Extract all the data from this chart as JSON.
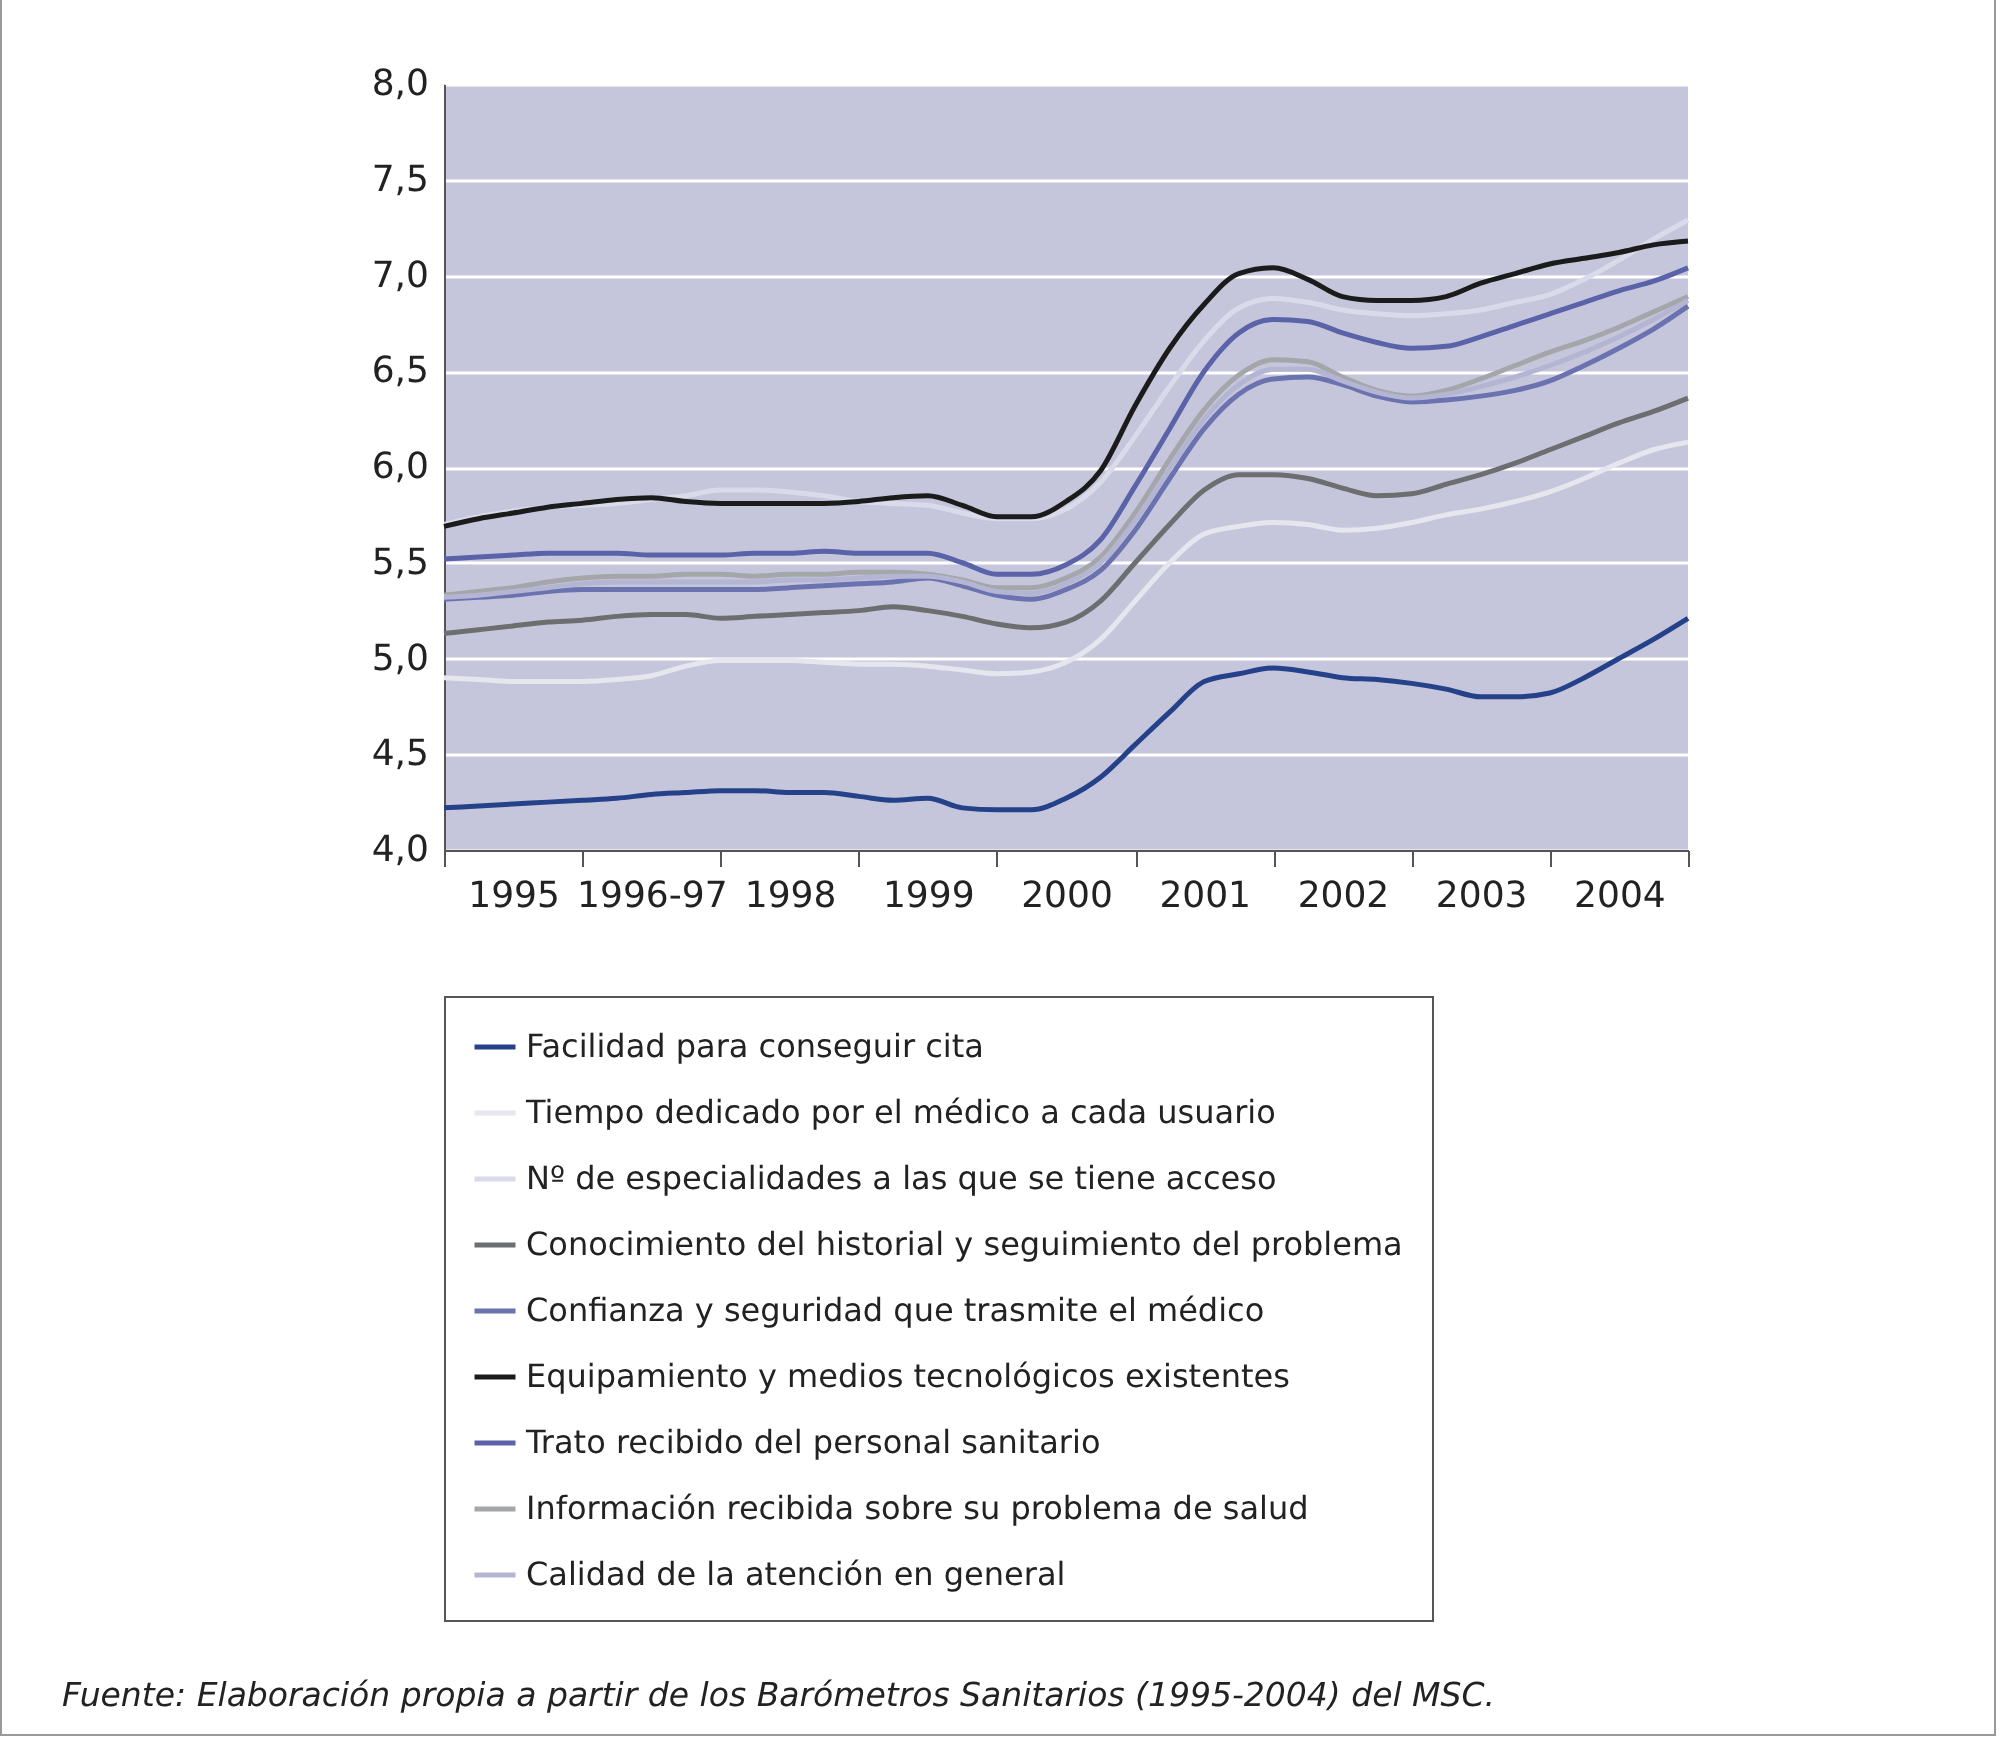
{
  "chart_data": {
    "type": "line",
    "categories": [
      null,
      null,
      "1995",
      null,
      null,
      null,
      "1996-97",
      null,
      null,
      null,
      "1998",
      null,
      null,
      null,
      "1999",
      null,
      null,
      null,
      "2000",
      null,
      null,
      null,
      "2001",
      null,
      null,
      null,
      "2002",
      null,
      null,
      null,
      "2003",
      null,
      null,
      null,
      "2004",
      null,
      null
    ],
    "series": [
      {
        "name": "Facilidad para conseguir cita",
        "color": "#24418a",
        "values": [
          4.22,
          4.23,
          4.24,
          4.25,
          4.26,
          4.27,
          4.29,
          4.3,
          4.31,
          4.31,
          4.3,
          4.3,
          4.28,
          4.26,
          4.27,
          4.22,
          4.21,
          4.21,
          4.27,
          4.38,
          4.55,
          4.72,
          4.88,
          4.92,
          4.95,
          4.93,
          4.9,
          4.89,
          4.87,
          4.84,
          4.8,
          4.8,
          4.82,
          4.9,
          5.0,
          5.1,
          5.21
        ]
      },
      {
        "name": "Tiempo dedicado por el médico a cada usuario",
        "color": "#e6e6ee",
        "values": [
          4.9,
          4.89,
          4.88,
          4.88,
          4.88,
          4.89,
          4.91,
          4.96,
          4.99,
          4.99,
          4.99,
          4.98,
          4.97,
          4.97,
          4.96,
          4.94,
          4.92,
          4.93,
          4.98,
          5.1,
          5.3,
          5.5,
          5.65,
          5.69,
          5.71,
          5.7,
          5.67,
          5.68,
          5.71,
          5.75,
          5.78,
          5.82,
          5.87,
          5.94,
          6.02,
          6.09,
          6.13
        ]
      },
      {
        "name": "Nº de especialidades a las que se tiene acceso",
        "color": "#dadbea",
        "values": [
          5.7,
          5.74,
          5.77,
          5.79,
          5.8,
          5.81,
          5.83,
          5.85,
          5.88,
          5.88,
          5.87,
          5.85,
          5.82,
          5.81,
          5.8,
          5.76,
          5.73,
          5.73,
          5.78,
          5.92,
          6.16,
          6.42,
          6.66,
          6.83,
          6.88,
          6.86,
          6.82,
          6.8,
          6.79,
          6.8,
          6.82,
          6.86,
          6.9,
          6.98,
          7.08,
          7.19,
          7.29
        ]
      },
      {
        "name": "Conocimiento del historial y seguimiento del problema",
        "color": "#6d6e70",
        "values": [
          5.13,
          5.15,
          5.17,
          5.19,
          5.2,
          5.22,
          5.23,
          5.23,
          5.21,
          5.22,
          5.23,
          5.24,
          5.25,
          5.27,
          5.25,
          5.22,
          5.18,
          5.16,
          5.19,
          5.3,
          5.5,
          5.7,
          5.88,
          5.96,
          5.96,
          5.94,
          5.89,
          5.85,
          5.86,
          5.91,
          5.96,
          6.02,
          6.09,
          6.16,
          6.23,
          6.29,
          6.36
        ]
      },
      {
        "name": "Confianza y seguridad que trasmite el médico",
        "color": "#6b72b0",
        "values": [
          5.31,
          5.32,
          5.33,
          5.35,
          5.36,
          5.36,
          5.36,
          5.36,
          5.36,
          5.36,
          5.37,
          5.38,
          5.39,
          5.4,
          5.42,
          5.38,
          5.33,
          5.31,
          5.36,
          5.46,
          5.67,
          5.94,
          6.2,
          6.38,
          6.46,
          6.47,
          6.43,
          6.37,
          6.34,
          6.35,
          6.37,
          6.4,
          6.45,
          6.53,
          6.62,
          6.72,
          6.84
        ]
      },
      {
        "name": "Equipamiento y medios tecnológicos existentes",
        "color": "#1b1b1b",
        "values": [
          5.69,
          5.73,
          5.76,
          5.79,
          5.81,
          5.83,
          5.84,
          5.82,
          5.81,
          5.81,
          5.81,
          5.81,
          5.82,
          5.84,
          5.85,
          5.8,
          5.74,
          5.74,
          5.82,
          5.98,
          6.32,
          6.62,
          6.85,
          7.01,
          7.04,
          6.98,
          6.89,
          6.87,
          6.87,
          6.89,
          6.96,
          7.01,
          7.06,
          7.09,
          7.12,
          7.16,
          7.18
        ]
      },
      {
        "name": "Trato recibido del personal sanitario",
        "color": "#5a62a8",
        "values": [
          5.52,
          5.53,
          5.54,
          5.55,
          5.55,
          5.55,
          5.54,
          5.54,
          5.54,
          5.55,
          5.55,
          5.56,
          5.55,
          5.55,
          5.55,
          5.5,
          5.44,
          5.44,
          5.49,
          5.62,
          5.9,
          6.2,
          6.5,
          6.7,
          6.77,
          6.76,
          6.7,
          6.65,
          6.62,
          6.63,
          6.68,
          6.74,
          6.8,
          6.86,
          6.92,
          6.97,
          7.04
        ]
      },
      {
        "name": "Información recibida sobre su problema de salud",
        "color": "#a5a6a9",
        "values": [
          5.33,
          5.35,
          5.37,
          5.4,
          5.42,
          5.43,
          5.43,
          5.44,
          5.44,
          5.43,
          5.44,
          5.44,
          5.45,
          5.45,
          5.44,
          5.41,
          5.37,
          5.37,
          5.42,
          5.53,
          5.76,
          6.04,
          6.3,
          6.48,
          6.56,
          6.55,
          6.47,
          6.4,
          6.37,
          6.4,
          6.46,
          6.53,
          6.6,
          6.66,
          6.73,
          6.81,
          6.89
        ]
      },
      {
        "name": "Calidad de la atención en general",
        "color": "#b3b5d2",
        "values": [
          5.32,
          5.33,
          5.35,
          5.37,
          5.39,
          5.4,
          5.4,
          5.4,
          5.4,
          5.4,
          5.41,
          5.41,
          5.42,
          5.43,
          5.43,
          5.4,
          5.35,
          5.34,
          5.39,
          5.5,
          5.72,
          5.99,
          6.25,
          6.43,
          6.51,
          6.51,
          6.45,
          6.39,
          6.36,
          6.38,
          6.42,
          6.47,
          6.53,
          6.6,
          6.68,
          6.77,
          6.87
        ]
      }
    ],
    "ylim": [
      4,
      8
    ],
    "yticks": [
      {
        "value": 4,
        "label": "4,0"
      },
      {
        "value": 4.5,
        "label": "4,5"
      },
      {
        "value": 5,
        "label": "5,0"
      },
      {
        "value": 5.5,
        "label": "5,5"
      },
      {
        "value": 6,
        "label": "6,0"
      },
      {
        "value": 6.5,
        "label": "6,5"
      },
      {
        "value": 7,
        "label": "7,0"
      },
      {
        "value": 7.5,
        "label": "7,5"
      },
      {
        "value": 8,
        "label": "8,0"
      }
    ],
    "grid": "y",
    "legend": "bottom",
    "marker": "none",
    "annotations": [
      "Fuente: Elaboración propia a partir de los Barómetros Sanitarios (1995-2004) del MSC."
    ]
  }
}
